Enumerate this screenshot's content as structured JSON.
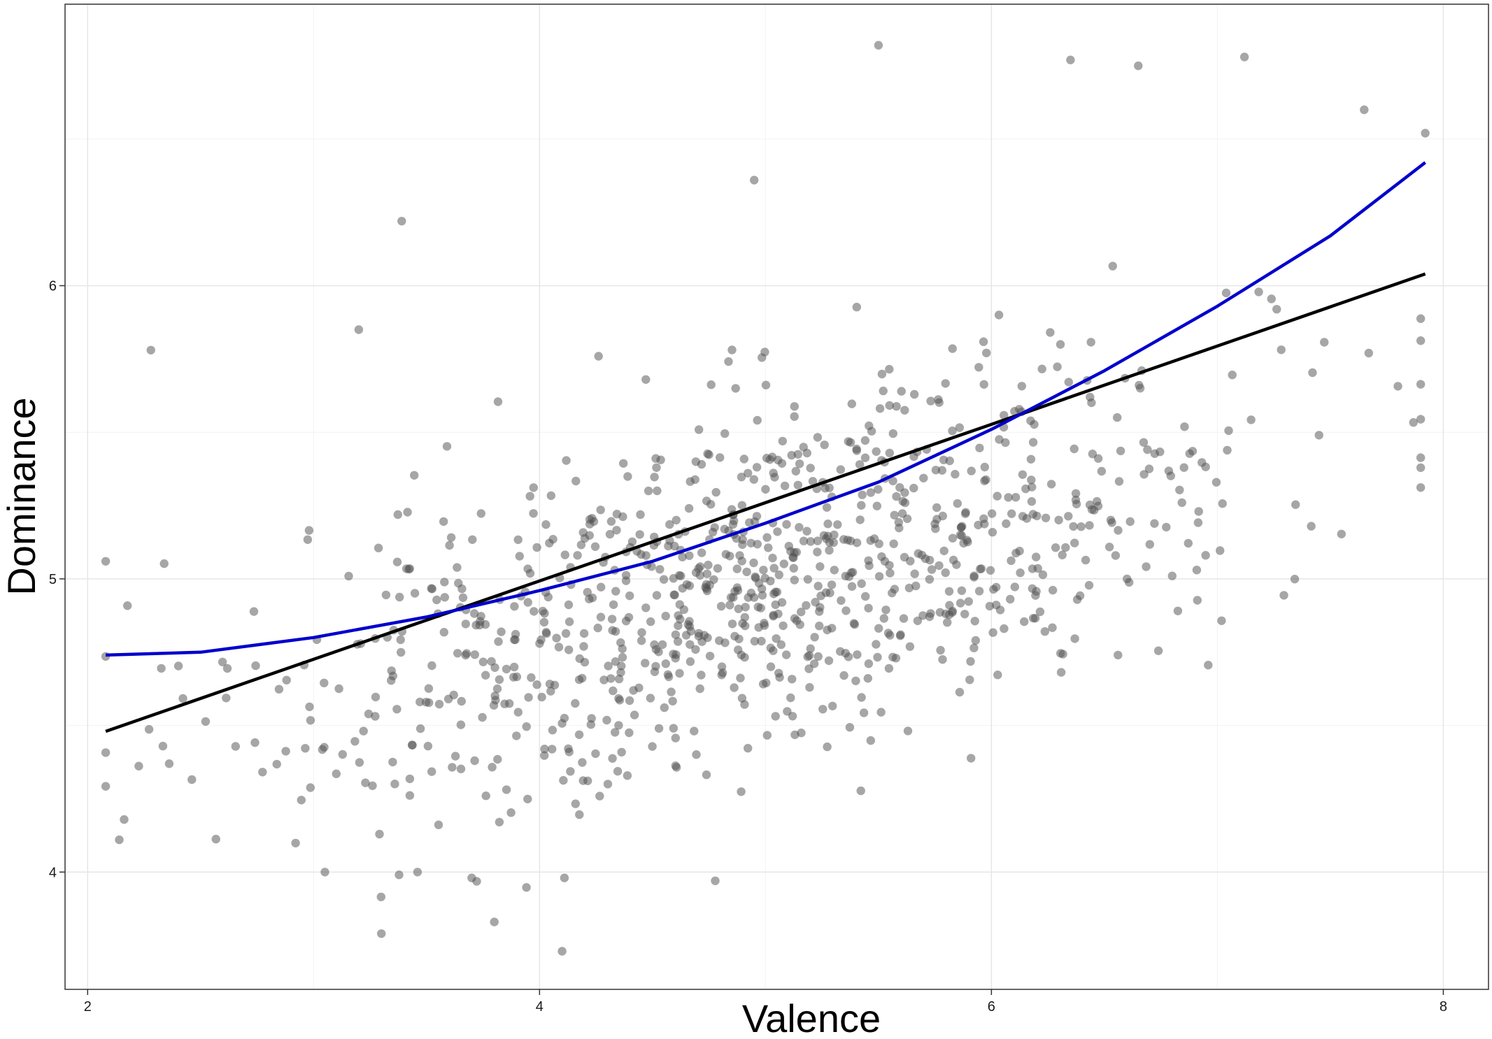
{
  "chart_data": {
    "type": "scatter",
    "title": "",
    "xlabel": "Valence",
    "ylabel": "Dominance",
    "xlim": [
      1.9,
      8.2
    ],
    "ylim": [
      3.6,
      6.96
    ],
    "x_ticks": [
      2,
      4,
      6,
      8
    ],
    "y_ticks": [
      4,
      5,
      6
    ],
    "x_minor_ticks": [
      3,
      5,
      7
    ],
    "y_minor_ticks": [
      4.5,
      5.5,
      6.5
    ],
    "grid": true,
    "legend": "none",
    "point_color": "#4d4d4d",
    "point_opacity": 0.5,
    "scatter_summary": {
      "n_points_approx": 1000,
      "x_mean": 5.0,
      "x_sd": 1.1,
      "y_trend_intercept": 4.0,
      "y_trend_slope": 0.2,
      "y_residual_sd": 0.3
    },
    "outlier_points": [
      {
        "x": 2.08,
        "y": 5.06
      },
      {
        "x": 2.14,
        "y": 4.11
      },
      {
        "x": 2.28,
        "y": 5.78
      },
      {
        "x": 3.39,
        "y": 6.22
      },
      {
        "x": 3.2,
        "y": 5.85
      },
      {
        "x": 3.3,
        "y": 3.79
      },
      {
        "x": 3.46,
        "y": 4.0
      },
      {
        "x": 3.8,
        "y": 3.83
      },
      {
        "x": 4.1,
        "y": 3.73
      },
      {
        "x": 4.11,
        "y": 3.98
      },
      {
        "x": 3.7,
        "y": 3.98
      },
      {
        "x": 3.05,
        "y": 4.0
      },
      {
        "x": 5.5,
        "y": 6.82
      },
      {
        "x": 6.35,
        "y": 6.77
      },
      {
        "x": 6.65,
        "y": 6.75
      },
      {
        "x": 7.12,
        "y": 6.78
      },
      {
        "x": 7.65,
        "y": 6.6
      },
      {
        "x": 7.92,
        "y": 6.52
      },
      {
        "x": 7.45,
        "y": 5.49
      },
      {
        "x": 7.67,
        "y": 5.77
      },
      {
        "x": 4.95,
        "y": 6.36
      },
      {
        "x": 6.56,
        "y": 4.74
      },
      {
        "x": 6.6,
        "y": 5.0
      },
      {
        "x": 6.8,
        "y": 5.01
      }
    ],
    "series": [
      {
        "type": "line",
        "color": "#000000",
        "x": [
          2.08,
          7.92
        ],
        "y": [
          4.48,
          6.04
        ]
      },
      {
        "type": "line",
        "color": "#0000cc",
        "x": [
          2.08,
          2.5,
          3.0,
          3.5,
          4.0,
          4.5,
          5.0,
          5.5,
          6.0,
          6.5,
          7.0,
          7.5,
          7.92
        ],
        "y": [
          4.74,
          4.75,
          4.8,
          4.87,
          4.96,
          5.06,
          5.19,
          5.33,
          5.51,
          5.71,
          5.93,
          6.17,
          6.42
        ]
      }
    ]
  }
}
